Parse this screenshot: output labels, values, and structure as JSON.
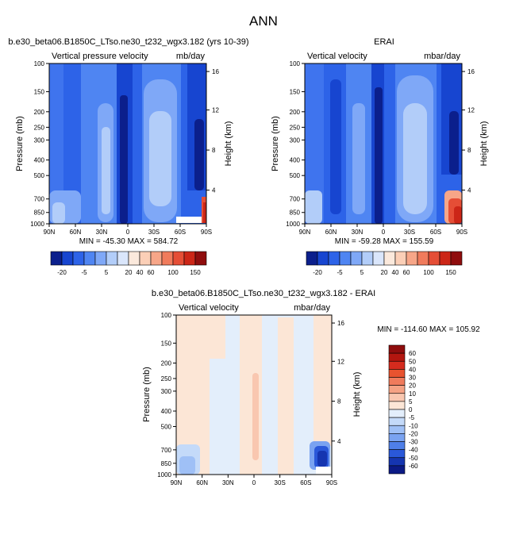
{
  "figure": {
    "title": "ANN"
  },
  "chart_data": [
    {
      "type": "heatmap",
      "title": "b.e30_beta06.B1850C_LTso.ne30_t232_wgx3.182 (yrs 10-39)",
      "left_label": "Vertical pressure velocity",
      "right_label": "mb/day",
      "ylabel": "Pressure (mb)",
      "ylabel_right": "Height (km)",
      "x_ticks": [
        "90N",
        "60N",
        "30N",
        "0",
        "30S",
        "60S",
        "90S"
      ],
      "y_ticks": [
        "100",
        "150",
        "200",
        "250",
        "300",
        "400",
        "500",
        "700",
        "850",
        "1000"
      ],
      "y_right_ticks": [
        "16",
        "12",
        "8",
        "4"
      ],
      "stats": "MIN = -45.30   MAX = 584.72",
      "colorbar_labels": [
        "-20",
        "-5",
        "5",
        "20",
        "40",
        "60",
        "100",
        "150"
      ],
      "colorbar_colors": [
        "#0b1f8c",
        "#1745d0",
        "#2d63e8",
        "#4f85f2",
        "#7fa8f7",
        "#b2cdf9",
        "#dae6fb",
        "#fbe9dc",
        "#fbcfb7",
        "#f7a688",
        "#f07b5c",
        "#e54e36",
        "#cc2617",
        "#8f0d0d"
      ]
    },
    {
      "type": "heatmap",
      "title": "ERAI",
      "left_label": "Vertical velocity",
      "right_label": "mbar/day",
      "ylabel": "Pressure (mb)",
      "ylabel_right": "Height (km)",
      "x_ticks": [
        "90N",
        "60N",
        "30N",
        "0",
        "30S",
        "60S",
        "90S"
      ],
      "y_ticks": [
        "100",
        "150",
        "200",
        "250",
        "300",
        "400",
        "500",
        "700",
        "850",
        "1000"
      ],
      "y_right_ticks": [
        "16",
        "12",
        "8",
        "4"
      ],
      "stats": "MIN = -59.28   MAX = 155.59",
      "colorbar_labels": [
        "-20",
        "-5",
        "5",
        "20",
        "40",
        "60",
        "100",
        "150"
      ],
      "colorbar_colors": [
        "#0b1f8c",
        "#1745d0",
        "#2d63e8",
        "#4f85f2",
        "#7fa8f7",
        "#b2cdf9",
        "#dae6fb",
        "#fbe9dc",
        "#fbcfb7",
        "#f7a688",
        "#f07b5c",
        "#e54e36",
        "#cc2617",
        "#8f0d0d"
      ]
    },
    {
      "type": "heatmap",
      "title": "b.e30_beta06.B1850C_LTso.ne30_t232_wgx3.182 - ERAI",
      "left_label": "Vertical velocity",
      "right_label": "mbar/day",
      "ylabel": "Pressure (mb)",
      "ylabel_right": "Height (km)",
      "x_ticks": [
        "90N",
        "60N",
        "30N",
        "0",
        "30S",
        "60S",
        "90S"
      ],
      "y_ticks": [
        "100",
        "150",
        "200",
        "250",
        "300",
        "400",
        "500",
        "700",
        "850",
        "1000"
      ],
      "y_right_ticks": [
        "16",
        "12",
        "8",
        "4"
      ],
      "stats": "MIN = -114.60   MAX = 105.92",
      "colorbar_labels": [
        "60",
        "50",
        "40",
        "30",
        "20",
        "10",
        "5",
        "0",
        "-5",
        "-10",
        "-20",
        "-30",
        "-40",
        "-50",
        "-60"
      ],
      "colorbar_colors": [
        "#8f0d0d",
        "#b3160f",
        "#d52b1e",
        "#e8532f",
        "#f07b5c",
        "#f5a284",
        "#f9c7b0",
        "#fce6d6",
        "#e3eefb",
        "#c4daf9",
        "#9fc0f6",
        "#7aa3f1",
        "#4f7fe8",
        "#2a58d9",
        "#1535b0",
        "#0b1a85"
      ]
    }
  ]
}
